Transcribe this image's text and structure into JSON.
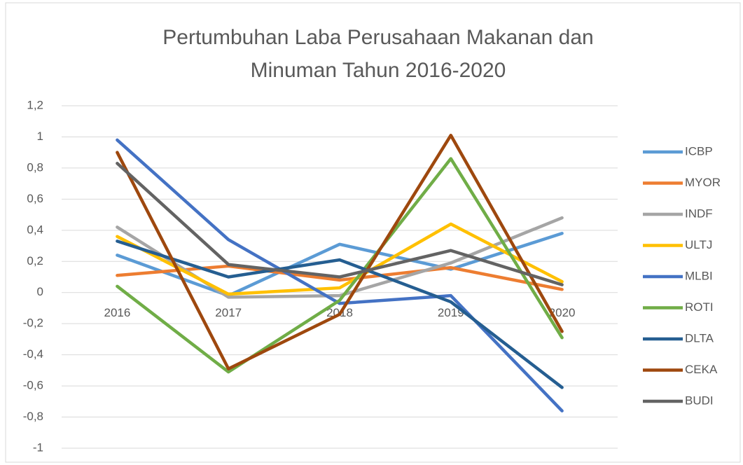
{
  "chart_data": {
    "type": "line",
    "title": "Pertumbuhan Laba Perusahaan Makanan dan Minuman Tahun 2016-2020",
    "categories": [
      "2016",
      "2017",
      "2018",
      "2019",
      "2020"
    ],
    "series": [
      {
        "name": "ICBP",
        "color": "#5b9bd5",
        "values": [
          0.24,
          -0.02,
          0.31,
          0.15,
          0.38
        ]
      },
      {
        "name": "MYOR",
        "color": "#ed7d31",
        "values": [
          0.11,
          0.17,
          0.08,
          0.16,
          0.02
        ]
      },
      {
        "name": "INDF",
        "color": "#a5a5a5",
        "values": [
          0.42,
          -0.03,
          -0.02,
          0.19,
          0.48
        ]
      },
      {
        "name": "ULTJ",
        "color": "#ffc000",
        "values": [
          0.36,
          -0.01,
          0.03,
          0.44,
          0.07
        ]
      },
      {
        "name": "MLBI",
        "color": "#4472c4",
        "values": [
          0.98,
          0.34,
          -0.07,
          -0.02,
          -0.76
        ]
      },
      {
        "name": "ROTI",
        "color": "#70ad47",
        "values": [
          0.04,
          -0.51,
          -0.05,
          0.86,
          -0.29
        ]
      },
      {
        "name": "DLTA",
        "color": "#255e91",
        "values": [
          0.33,
          0.1,
          0.21,
          -0.06,
          -0.61
        ]
      },
      {
        "name": "CEKA",
        "color": "#9e480e",
        "values": [
          0.9,
          -0.49,
          -0.14,
          1.01,
          -0.25
        ]
      },
      {
        "name": "BUDI",
        "color": "#636363",
        "values": [
          0.83,
          0.18,
          0.1,
          0.27,
          0.05
        ]
      }
    ],
    "ylim": [
      -1,
      1.2
    ],
    "yticks": [
      -1,
      {
        "value": -0.8,
        "label": "-0,8"
      },
      {
        "value": -0.6,
        "label": "-0,6"
      },
      {
        "value": -0.4,
        "label": "-0,4"
      },
      {
        "value": -0.2,
        "label": "-0,2"
      },
      0,
      {
        "value": 0.2,
        "label": "0,2"
      },
      {
        "value": 0.4,
        "label": "0,4"
      },
      {
        "value": 0.6,
        "label": "0,6"
      },
      {
        "value": 0.8,
        "label": "0,8"
      },
      1,
      {
        "value": 1.2,
        "label": "1,2"
      }
    ],
    "grid": true,
    "legend": "right"
  }
}
